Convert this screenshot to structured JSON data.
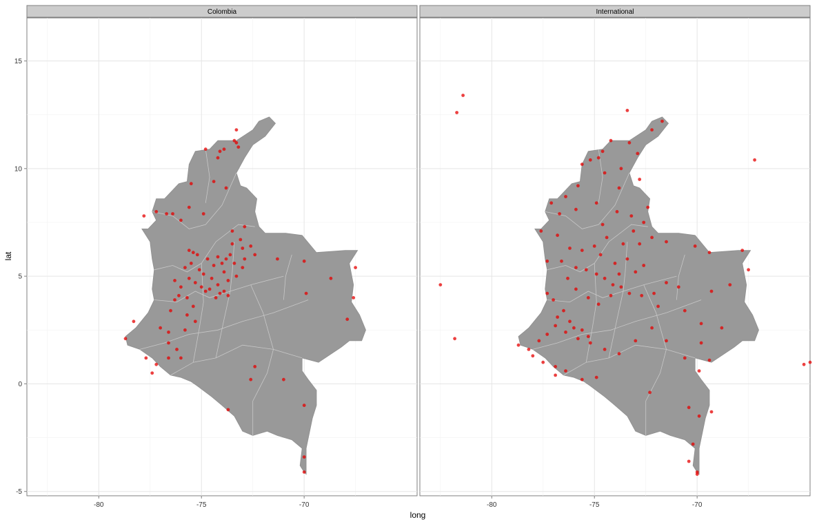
{
  "chart_data": {
    "type": "scatter",
    "xlabel": "long",
    "ylabel": "lat",
    "xlim": [
      -83.5,
      -64.5
    ],
    "ylim": [
      -5.2,
      17
    ],
    "x_ticks": [
      -80,
      -75,
      -70
    ],
    "y_ticks": [
      -5,
      0,
      5,
      10,
      15
    ],
    "grid": true,
    "colors": {
      "points": "#e60000",
      "land": "#999999",
      "borders": "#c8c8c8",
      "strip_fill": "#cccccc",
      "grid": "#e5e5e5"
    },
    "outline": [
      [
        -78.6,
        1.8
      ],
      [
        -78.0,
        1.6
      ],
      [
        -77.4,
        1.2
      ],
      [
        -77.0,
        0.8
      ],
      [
        -76.5,
        0.4
      ],
      [
        -76.0,
        0.3
      ],
      [
        -75.5,
        0.1
      ],
      [
        -75.2,
        -0.1
      ],
      [
        -74.5,
        -0.6
      ],
      [
        -74.0,
        -1.0
      ],
      [
        -73.4,
        -1.5
      ],
      [
        -73.0,
        -2.2
      ],
      [
        -72.5,
        -2.4
      ],
      [
        -71.8,
        -2.2
      ],
      [
        -71.3,
        -2.4
      ],
      [
        -70.6,
        -2.6
      ],
      [
        -70.1,
        -3.0
      ],
      [
        -70.2,
        -3.8
      ],
      [
        -70.0,
        -4.1
      ],
      [
        -69.9,
        -4.2
      ],
      [
        -69.9,
        -3.0
      ],
      [
        -69.6,
        -1.6
      ],
      [
        -69.4,
        -1.0
      ],
      [
        -69.4,
        -0.3
      ],
      [
        -69.8,
        0.2
      ],
      [
        -70.1,
        0.6
      ],
      [
        -70.1,
        1.2
      ],
      [
        -69.3,
        1.0
      ],
      [
        -68.2,
        1.7
      ],
      [
        -67.8,
        2.0
      ],
      [
        -67.2,
        2.0
      ],
      [
        -67.0,
        2.5
      ],
      [
        -67.3,
        3.2
      ],
      [
        -67.7,
        3.8
      ],
      [
        -67.6,
        4.6
      ],
      [
        -67.8,
        5.6
      ],
      [
        -67.4,
        6.2
      ],
      [
        -68.0,
        6.2
      ],
      [
        -69.4,
        6.1
      ],
      [
        -70.1,
        6.9
      ],
      [
        -70.9,
        7.0
      ],
      [
        -71.9,
        7.0
      ],
      [
        -72.2,
        7.3
      ],
      [
        -72.4,
        8.0
      ],
      [
        -72.3,
        8.6
      ],
      [
        -72.8,
        9.1
      ],
      [
        -73.1,
        9.2
      ],
      [
        -73.3,
        9.8
      ],
      [
        -72.9,
        10.5
      ],
      [
        -72.5,
        11.1
      ],
      [
        -71.9,
        11.5
      ],
      [
        -71.4,
        12.1
      ],
      [
        -71.7,
        12.4
      ],
      [
        -72.2,
        12.2
      ],
      [
        -72.5,
        11.8
      ],
      [
        -73.3,
        11.3
      ],
      [
        -74.2,
        11.3
      ],
      [
        -74.6,
        10.9
      ],
      [
        -75.3,
        10.8
      ],
      [
        -75.6,
        10.2
      ],
      [
        -75.7,
        9.4
      ],
      [
        -76.1,
        9.3
      ],
      [
        -76.8,
        8.6
      ],
      [
        -77.2,
        8.6
      ],
      [
        -77.4,
        8.0
      ],
      [
        -77.2,
        7.6
      ],
      [
        -77.6,
        7.2
      ],
      [
        -77.9,
        7.2
      ],
      [
        -77.5,
        6.6
      ],
      [
        -77.4,
        5.8
      ],
      [
        -77.3,
        5.3
      ],
      [
        -77.4,
        4.4
      ],
      [
        -77.3,
        3.9
      ],
      [
        -77.6,
        3.3
      ],
      [
        -78.2,
        2.6
      ],
      [
        -78.7,
        2.2
      ],
      [
        -78.6,
        1.8
      ]
    ],
    "series": [
      {
        "panel": "Colombia",
        "points": [
          [
            -73.3,
            11.2
          ],
          [
            -73.4,
            11.3
          ],
          [
            -73.2,
            11.0
          ],
          [
            -73.9,
            10.9
          ],
          [
            -74.1,
            10.8
          ],
          [
            -74.8,
            10.9
          ],
          [
            -74.2,
            10.5
          ],
          [
            -73.3,
            11.8
          ],
          [
            -75.5,
            9.3
          ],
          [
            -74.4,
            9.4
          ],
          [
            -73.8,
            9.1
          ],
          [
            -75.6,
            8.2
          ],
          [
            -74.9,
            7.9
          ],
          [
            -76.4,
            7.9
          ],
          [
            -76.7,
            7.9
          ],
          [
            -77.2,
            8.0
          ],
          [
            -76.0,
            7.6
          ],
          [
            -77.8,
            7.8
          ],
          [
            -73.5,
            7.1
          ],
          [
            -72.9,
            7.3
          ],
          [
            -73.1,
            6.7
          ],
          [
            -75.6,
            6.2
          ],
          [
            -75.4,
            6.1
          ],
          [
            -75.2,
            6.0
          ],
          [
            -75.5,
            5.6
          ],
          [
            -75.8,
            5.4
          ],
          [
            -75.1,
            5.3
          ],
          [
            -74.9,
            5.1
          ],
          [
            -75.6,
            4.9
          ],
          [
            -75.3,
            4.7
          ],
          [
            -75.0,
            4.5
          ],
          [
            -74.8,
            4.3
          ],
          [
            -74.6,
            4.4
          ],
          [
            -74.2,
            4.6
          ],
          [
            -74.1,
            4.2
          ],
          [
            -74.3,
            4.0
          ],
          [
            -73.7,
            4.1
          ],
          [
            -73.9,
            4.3
          ],
          [
            -74.5,
            4.9
          ],
          [
            -74.0,
            5.6
          ],
          [
            -73.8,
            5.8
          ],
          [
            -73.6,
            6.0
          ],
          [
            -73.4,
            5.6
          ],
          [
            -73.0,
            5.4
          ],
          [
            -73.3,
            5.0
          ],
          [
            -72.9,
            5.8
          ],
          [
            -72.6,
            6.4
          ],
          [
            -72.4,
            6.0
          ],
          [
            -73.5,
            6.5
          ],
          [
            -73.0,
            6.3
          ],
          [
            -74.4,
            5.5
          ],
          [
            -74.7,
            5.8
          ],
          [
            -74.2,
            5.9
          ],
          [
            -73.9,
            5.2
          ],
          [
            -73.7,
            4.8
          ],
          [
            -76.5,
            3.4
          ],
          [
            -76.3,
            3.9
          ],
          [
            -76.1,
            4.1
          ],
          [
            -76.0,
            4.5
          ],
          [
            -76.3,
            4.8
          ],
          [
            -75.7,
            4.0
          ],
          [
            -75.4,
            3.6
          ],
          [
            -75.7,
            3.2
          ],
          [
            -75.3,
            2.9
          ],
          [
            -75.8,
            2.5
          ],
          [
            -76.6,
            2.4
          ],
          [
            -77.0,
            2.6
          ],
          [
            -76.6,
            1.9
          ],
          [
            -76.2,
            1.6
          ],
          [
            -76.6,
            1.2
          ],
          [
            -76.0,
            1.2
          ],
          [
            -77.2,
            0.9
          ],
          [
            -77.7,
            1.2
          ],
          [
            -77.4,
            0.5
          ],
          [
            -78.3,
            2.9
          ],
          [
            -78.7,
            2.1
          ],
          [
            -71.3,
            5.8
          ],
          [
            -70.0,
            5.7
          ],
          [
            -69.9,
            4.2
          ],
          [
            -68.7,
            4.9
          ],
          [
            -67.5,
            5.4
          ],
          [
            -67.6,
            4.0
          ],
          [
            -67.9,
            3.0
          ],
          [
            -72.4,
            0.8
          ],
          [
            -71.0,
            0.2
          ],
          [
            -72.6,
            0.2
          ],
          [
            -73.7,
            -1.2
          ],
          [
            -70.0,
            -1.0
          ],
          [
            -70.0,
            -3.4
          ],
          [
            -70.0,
            -4.1
          ]
        ]
      },
      {
        "panel": "International",
        "points": [
          [
            -81.7,
            12.6
          ],
          [
            -81.4,
            13.4
          ],
          [
            -82.5,
            4.6
          ],
          [
            -81.8,
            2.1
          ],
          [
            -64.8,
            0.9
          ],
          [
            -64.5,
            1.0
          ],
          [
            -67.2,
            10.4
          ],
          [
            -71.7,
            12.2
          ],
          [
            -72.2,
            11.8
          ],
          [
            -74.2,
            11.3
          ],
          [
            -74.8,
            10.5
          ],
          [
            -73.4,
            12.7
          ],
          [
            -75.6,
            10.2
          ],
          [
            -75.2,
            10.4
          ],
          [
            -74.5,
            9.8
          ],
          [
            -73.7,
            10.0
          ],
          [
            -72.8,
            9.5
          ],
          [
            -75.8,
            9.2
          ],
          [
            -76.4,
            8.7
          ],
          [
            -77.1,
            8.4
          ],
          [
            -76.7,
            7.9
          ],
          [
            -75.9,
            8.1
          ],
          [
            -74.9,
            8.4
          ],
          [
            -73.9,
            8.0
          ],
          [
            -73.2,
            7.8
          ],
          [
            -72.6,
            7.5
          ],
          [
            -72.4,
            8.2
          ],
          [
            -77.6,
            7.1
          ],
          [
            -76.8,
            6.9
          ],
          [
            -76.2,
            6.3
          ],
          [
            -75.6,
            6.2
          ],
          [
            -75.0,
            6.4
          ],
          [
            -74.4,
            6.8
          ],
          [
            -73.6,
            6.5
          ],
          [
            -73.1,
            7.1
          ],
          [
            -72.8,
            6.5
          ],
          [
            -72.2,
            6.8
          ],
          [
            -71.5,
            6.6
          ],
          [
            -70.1,
            6.4
          ],
          [
            -69.4,
            6.1
          ],
          [
            -67.8,
            6.2
          ],
          [
            -67.5,
            5.3
          ],
          [
            -68.4,
            4.6
          ],
          [
            -69.3,
            4.3
          ],
          [
            -70.9,
            4.5
          ],
          [
            -71.5,
            4.7
          ],
          [
            -77.3,
            5.7
          ],
          [
            -76.6,
            5.7
          ],
          [
            -75.9,
            5.4
          ],
          [
            -75.4,
            5.3
          ],
          [
            -74.9,
            5.1
          ],
          [
            -74.5,
            4.9
          ],
          [
            -74.1,
            4.6
          ],
          [
            -73.7,
            4.5
          ],
          [
            -73.3,
            4.2
          ],
          [
            -72.7,
            4.1
          ],
          [
            -72.1,
            4.2
          ],
          [
            -71.9,
            3.6
          ],
          [
            -70.6,
            3.4
          ],
          [
            -69.8,
            2.8
          ],
          [
            -68.8,
            2.6
          ],
          [
            -77.3,
            4.2
          ],
          [
            -77.0,
            3.9
          ],
          [
            -76.5,
            3.4
          ],
          [
            -76.8,
            3.1
          ],
          [
            -76.2,
            2.9
          ],
          [
            -76.0,
            2.6
          ],
          [
            -75.6,
            2.5
          ],
          [
            -75.3,
            2.2
          ],
          [
            -75.8,
            2.1
          ],
          [
            -76.4,
            2.4
          ],
          [
            -76.9,
            2.7
          ],
          [
            -77.3,
            2.3
          ],
          [
            -77.7,
            2.0
          ],
          [
            -78.2,
            1.6
          ],
          [
            -78.7,
            1.8
          ],
          [
            -78.0,
            1.3
          ],
          [
            -77.5,
            1.0
          ],
          [
            -76.9,
            0.8
          ],
          [
            -76.4,
            0.6
          ],
          [
            -76.9,
            0.4
          ],
          [
            -75.2,
            1.9
          ],
          [
            -74.5,
            1.6
          ],
          [
            -73.8,
            1.4
          ],
          [
            -73.0,
            2.0
          ],
          [
            -72.2,
            2.6
          ],
          [
            -71.5,
            2.0
          ],
          [
            -70.6,
            1.2
          ],
          [
            -69.8,
            1.9
          ],
          [
            -69.4,
            1.1
          ],
          [
            -69.9,
            0.6
          ],
          [
            -75.6,
            0.2
          ],
          [
            -74.9,
            0.3
          ],
          [
            -72.3,
            -0.4
          ],
          [
            -70.4,
            -1.1
          ],
          [
            -69.9,
            -1.5
          ],
          [
            -69.3,
            -1.3
          ],
          [
            -70.2,
            -2.8
          ],
          [
            -70.4,
            -3.6
          ],
          [
            -70.0,
            -4.1
          ],
          [
            -70.0,
            -4.2
          ],
          [
            -74.7,
            6.0
          ],
          [
            -74.0,
            5.6
          ],
          [
            -73.4,
            5.8
          ],
          [
            -73.8,
            5.1
          ],
          [
            -73.0,
            5.2
          ],
          [
            -72.6,
            5.5
          ],
          [
            -74.2,
            4.1
          ],
          [
            -74.8,
            3.7
          ],
          [
            -75.3,
            4.0
          ],
          [
            -75.9,
            4.4
          ],
          [
            -76.3,
            4.9
          ],
          [
            -74.6,
            7.4
          ],
          [
            -73.8,
            9.1
          ],
          [
            -72.9,
            10.7
          ],
          [
            -73.3,
            11.2
          ],
          [
            -74.6,
            10.8
          ]
        ]
      }
    ]
  },
  "panels": [
    {
      "strip": "Colombia"
    },
    {
      "strip": "International"
    }
  ],
  "labels": {
    "x_ticks": [
      "-80",
      "-75",
      "-70"
    ],
    "y_ticks": [
      "-5",
      "0",
      "5",
      "10",
      "15"
    ],
    "xlabel": "long",
    "ylabel": "lat"
  }
}
